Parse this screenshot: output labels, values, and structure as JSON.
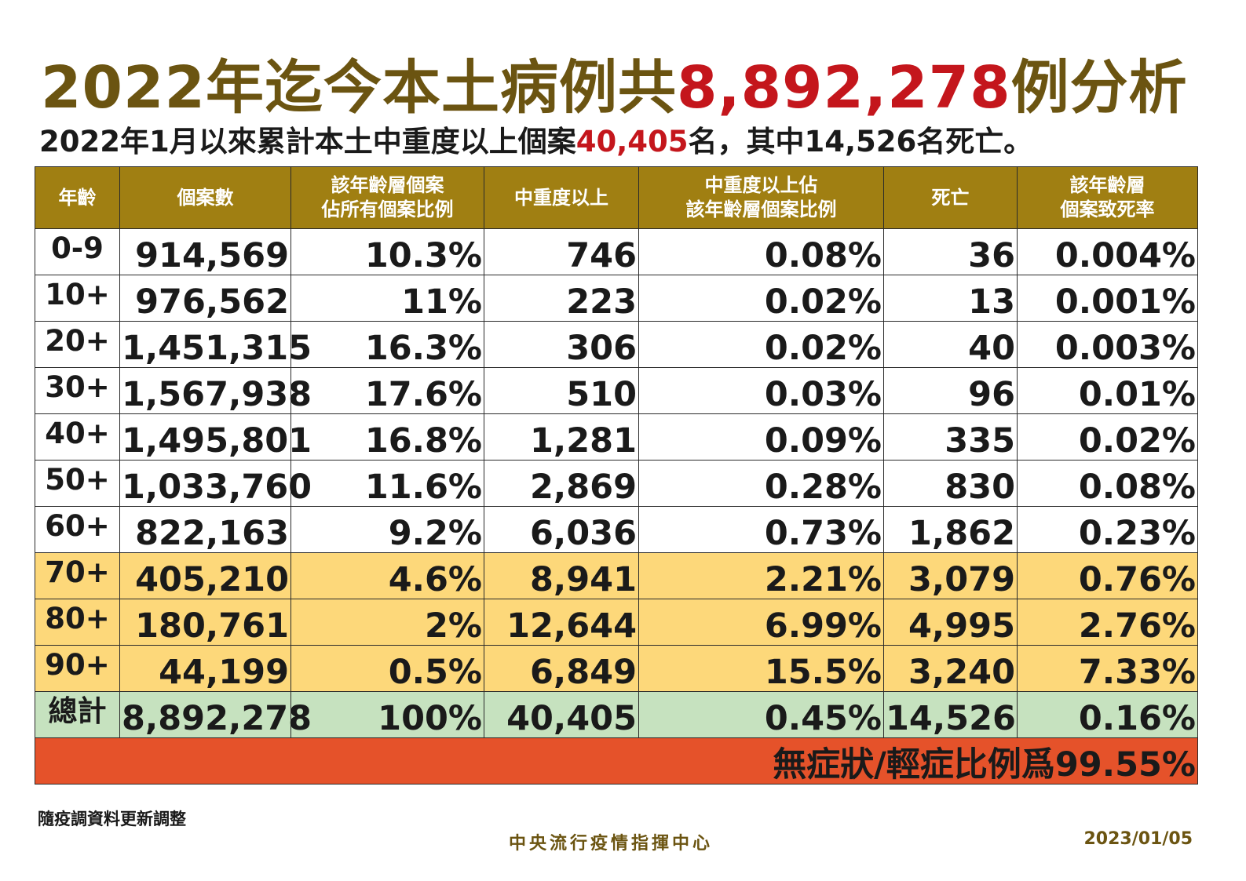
{
  "title": {
    "prefix": "2022年迄今本土病例共",
    "highlight": "8,892,278",
    "suffix": "例分析"
  },
  "subtitle": {
    "prefix": "2022年1月以來累計本土中重度以上個案",
    "highlight": "40,405",
    "suffix": "名，其中14,526名死亡。"
  },
  "table": {
    "headers": [
      {
        "line1": "年齡",
        "line2": ""
      },
      {
        "line1": "個案數",
        "line2": ""
      },
      {
        "line1": "該年齡層個案",
        "line2": "佔所有個案比例"
      },
      {
        "line1": "中重度以上",
        "line2": ""
      },
      {
        "line1": "中重度以上佔",
        "line2": "該年齡層個案比例"
      },
      {
        "line1": "死亡",
        "line2": ""
      },
      {
        "line1": "該年齡層",
        "line2": "個案致死率"
      }
    ],
    "rows": [
      {
        "age": "0-9",
        "cases": "914,569",
        "share": "10.3%",
        "severe": "746",
        "severe_ratio": "0.08%",
        "deaths": "36",
        "fatality": "0.004%"
      },
      {
        "age": "10+",
        "cases": "976,562",
        "share": "11%",
        "severe": "223",
        "severe_ratio": "0.02%",
        "deaths": "13",
        "fatality": "0.001%"
      },
      {
        "age": "20+",
        "cases": "1,451,315",
        "share": "16.3%",
        "severe": "306",
        "severe_ratio": "0.02%",
        "deaths": "40",
        "fatality": "0.003%"
      },
      {
        "age": "30+",
        "cases": "1,567,938",
        "share": "17.6%",
        "severe": "510",
        "severe_ratio": "0.03%",
        "deaths": "96",
        "fatality": "0.01%"
      },
      {
        "age": "40+",
        "cases": "1,495,801",
        "share": "16.8%",
        "severe": "1,281",
        "severe_ratio": "0.09%",
        "deaths": "335",
        "fatality": "0.02%"
      },
      {
        "age": "50+",
        "cases": "1,033,760",
        "share": "11.6%",
        "severe": "2,869",
        "severe_ratio": "0.28%",
        "deaths": "830",
        "fatality": "0.08%"
      },
      {
        "age": "60+",
        "cases": "822,163",
        "share": "9.2%",
        "severe": "6,036",
        "severe_ratio": "0.73%",
        "deaths": "1,862",
        "fatality": "0.23%"
      },
      {
        "age": "70+",
        "cases": "405,210",
        "share": "4.6%",
        "severe": "8,941",
        "severe_ratio": "2.21%",
        "deaths": "3,079",
        "fatality": "0.76%"
      },
      {
        "age": "80+",
        "cases": "180,761",
        "share": "2%",
        "severe": "12,644",
        "severe_ratio": "6.99%",
        "deaths": "4,995",
        "fatality": "2.76%"
      },
      {
        "age": "90+",
        "cases": "44,199",
        "share": "0.5%",
        "severe": "6,849",
        "severe_ratio": "15.5%",
        "deaths": "3,240",
        "fatality": "7.33%"
      }
    ],
    "total": {
      "age": "總計",
      "cases": "8,892,278",
      "share": "100%",
      "severe": "40,405",
      "severe_ratio": "0.45%",
      "deaths": "14,526",
      "fatality": "0.16%"
    },
    "banner": "無症狀/輕症比例爲99.55%"
  },
  "footer": {
    "note": "隨疫調資料更新調整",
    "agency": "中央流行疫情指揮中心",
    "date": "2023/01/05"
  },
  "colors": {
    "title": "#6b5411",
    "highlight": "#c4161c",
    "header_bg": "#a07f12",
    "elderly_row_bg": "#fdd87a",
    "total_row_bg": "#c6e2bf",
    "banner_bg": "#e5522a"
  }
}
